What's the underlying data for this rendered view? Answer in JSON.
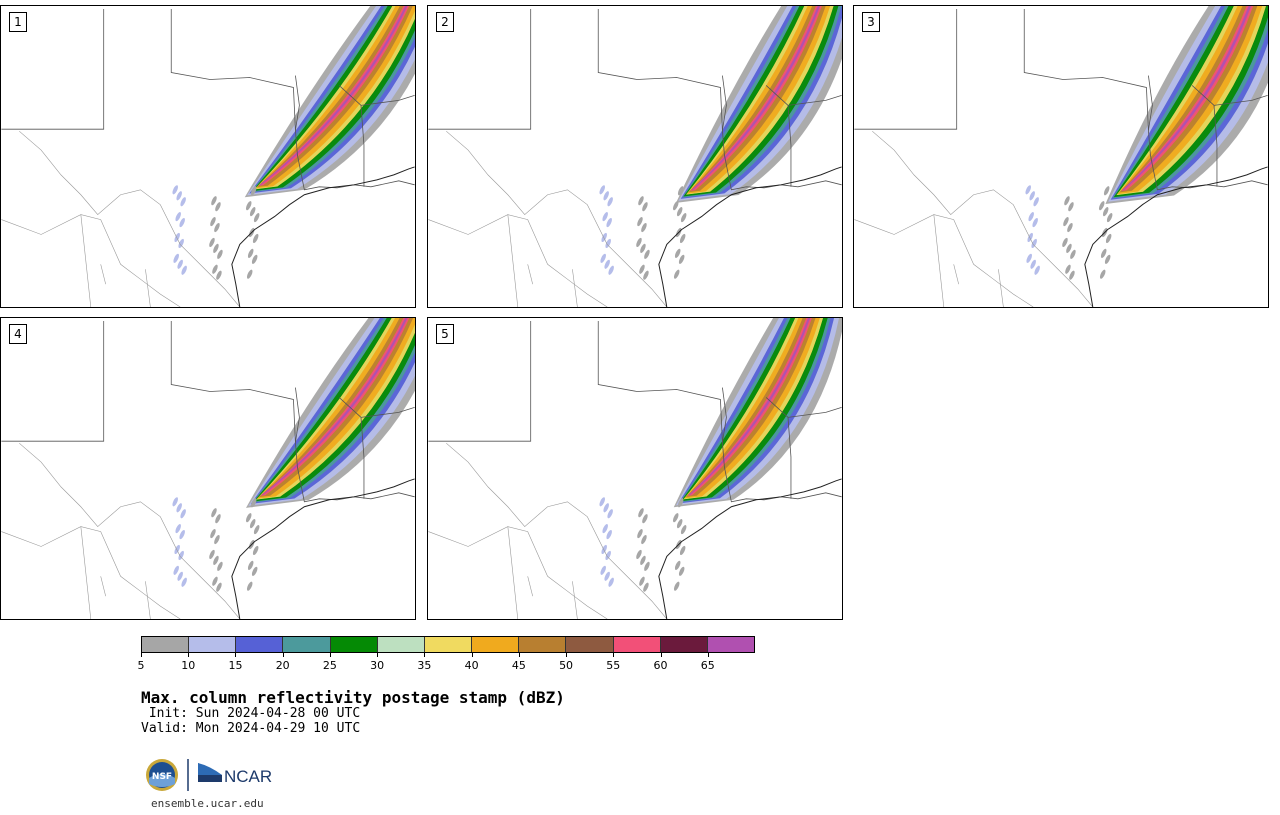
{
  "panels": [
    {
      "label": "1"
    },
    {
      "label": "2"
    },
    {
      "label": "3"
    },
    {
      "label": "4"
    },
    {
      "label": "5"
    }
  ],
  "colorbar": {
    "colors": [
      "#a6a6a6",
      "#b5bdea",
      "#5661d6",
      "#4c9a9c",
      "#058a05",
      "#bde0c0",
      "#f0da60",
      "#f0aa1e",
      "#b87f30",
      "#8e5a40",
      "#f25078",
      "#6b1a3c",
      "#b050b0"
    ],
    "tick_labels": [
      "5",
      "10",
      "15",
      "20",
      "25",
      "30",
      "35",
      "40",
      "45",
      "50",
      "55",
      "60",
      "65"
    ]
  },
  "title": "Max. column reflectivity postage stamp (dBZ)",
  "init": " Init: Sun 2024-04-28 00 UTC",
  "valid": "Valid: Mon 2024-04-29 10 UTC",
  "logos": {
    "nsf": "NSF",
    "ncar": "NCAR"
  },
  "url": "ensemble.ucar.edu"
}
